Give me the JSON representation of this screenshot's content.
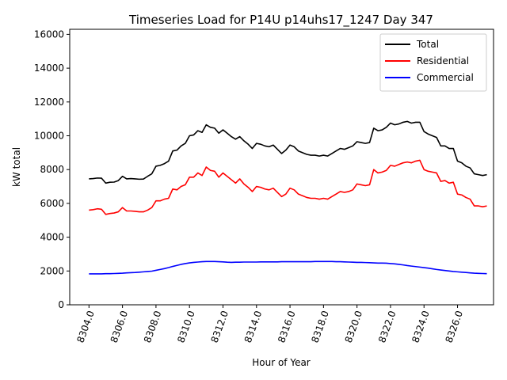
{
  "chart_data": {
    "type": "line",
    "title": "Timeseries Load for P14U p14uhs17_1247  Day 347",
    "xlabel": "Hour of Year",
    "ylabel": "kW total",
    "xlim": [
      8302.85,
      8328.15
    ],
    "ylim": [
      0,
      16300
    ],
    "xticks": [
      8304,
      8306,
      8308,
      8310,
      8312,
      8314,
      8316,
      8318,
      8320,
      8322,
      8324,
      8326
    ],
    "xtick_labels": [
      "8304.0",
      "8306.0",
      "8308.0",
      "8310.0",
      "8312.0",
      "8314.0",
      "8316.0",
      "8318.0",
      "8320.0",
      "8322.0",
      "8324.0",
      "8326.0"
    ],
    "yticks": [
      0,
      2000,
      4000,
      6000,
      8000,
      10000,
      12000,
      14000,
      16000
    ],
    "ytick_labels": [
      "0",
      "2000",
      "4000",
      "6000",
      "8000",
      "10000",
      "12000",
      "14000",
      "16000"
    ],
    "legend_position": "top-right",
    "x_start": 8304.0,
    "x_step": 0.25,
    "series": [
      {
        "name": "Total",
        "color": "#000000",
        "values": [
          7450,
          7470,
          7500,
          7490,
          7200,
          7250,
          7260,
          7350,
          7600,
          7450,
          7470,
          7450,
          7430,
          7440,
          7600,
          7750,
          8200,
          8250,
          8350,
          8500,
          9100,
          9150,
          9400,
          9550,
          10000,
          10050,
          10300,
          10200,
          10650,
          10500,
          10450,
          10150,
          10350,
          10150,
          9950,
          9800,
          9950,
          9700,
          9500,
          9250,
          9550,
          9500,
          9400,
          9350,
          9450,
          9200,
          8950,
          9150,
          9450,
          9350,
          9100,
          9000,
          8900,
          8850,
          8850,
          8800,
          8850,
          8800,
          8950,
          9100,
          9250,
          9200,
          9300,
          9400,
          9650,
          9600,
          9550,
          9600,
          10450,
          10300,
          10350,
          10500,
          10750,
          10650,
          10700,
          10800,
          10850,
          10750,
          10800,
          10800,
          10250,
          10100,
          10000,
          9900,
          9400,
          9400,
          9250,
          9250,
          8500,
          8400,
          8200,
          8100,
          7750,
          7700,
          7650,
          7700
        ]
      },
      {
        "name": "Residential",
        "color": "#ff0000",
        "values": [
          5600,
          5630,
          5680,
          5650,
          5350,
          5400,
          5430,
          5500,
          5750,
          5550,
          5550,
          5530,
          5500,
          5500,
          5600,
          5750,
          6150,
          6150,
          6250,
          6300,
          6850,
          6800,
          7000,
          7100,
          7550,
          7550,
          7800,
          7650,
          8150,
          7950,
          7900,
          7550,
          7800,
          7600,
          7400,
          7200,
          7450,
          7150,
          6950,
          6700,
          7000,
          6950,
          6850,
          6800,
          6900,
          6650,
          6400,
          6550,
          6900,
          6800,
          6550,
          6450,
          6350,
          6300,
          6300,
          6250,
          6300,
          6250,
          6400,
          6550,
          6700,
          6650,
          6700,
          6800,
          7150,
          7100,
          7050,
          7100,
          8000,
          7800,
          7850,
          7950,
          8250,
          8200,
          8300,
          8400,
          8450,
          8400,
          8500,
          8550,
          8000,
          7900,
          7850,
          7800,
          7300,
          7350,
          7200,
          7250,
          6550,
          6500,
          6350,
          6250,
          5850,
          5850,
          5800,
          5850
        ]
      },
      {
        "name": "Commercial",
        "color": "#0000ff",
        "values": [
          1830,
          1830,
          1830,
          1830,
          1840,
          1840,
          1850,
          1860,
          1870,
          1890,
          1900,
          1910,
          1930,
          1950,
          1970,
          1990,
          2040,
          2090,
          2140,
          2200,
          2270,
          2330,
          2390,
          2440,
          2480,
          2510,
          2530,
          2550,
          2560,
          2560,
          2560,
          2550,
          2540,
          2520,
          2510,
          2520,
          2520,
          2530,
          2530,
          2530,
          2530,
          2540,
          2540,
          2540,
          2540,
          2540,
          2550,
          2550,
          2550,
          2550,
          2550,
          2550,
          2550,
          2550,
          2560,
          2560,
          2560,
          2560,
          2560,
          2550,
          2550,
          2540,
          2530,
          2520,
          2510,
          2510,
          2500,
          2490,
          2480,
          2470,
          2470,
          2460,
          2440,
          2420,
          2390,
          2360,
          2320,
          2290,
          2260,
          2230,
          2200,
          2170,
          2130,
          2090,
          2060,
          2030,
          2000,
          1970,
          1950,
          1930,
          1910,
          1890,
          1870,
          1860,
          1850,
          1840
        ]
      }
    ]
  }
}
